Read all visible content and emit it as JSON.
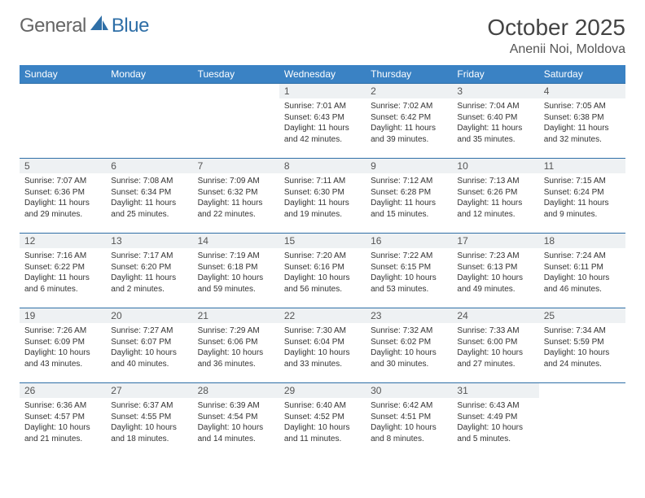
{
  "brand": {
    "part1": "General",
    "part2": "Blue"
  },
  "title": "October 2025",
  "location": "Anenii Noi, Moldova",
  "style": {
    "header_bg": "#3a82c4",
    "header_text": "#ffffff",
    "daynum_bg": "#eef1f3",
    "border_color": "#2f6fa7",
    "body_text": "#333333",
    "title_fontsize": 28,
    "location_fontsize": 16,
    "dayhead_fontsize": 12,
    "body_fontsize": 10
  },
  "day_headers": [
    "Sunday",
    "Monday",
    "Tuesday",
    "Wednesday",
    "Thursday",
    "Friday",
    "Saturday"
  ],
  "weeks": [
    [
      null,
      null,
      null,
      {
        "n": "1",
        "sunrise": "7:01 AM",
        "sunset": "6:43 PM",
        "daylight": "11 hours and 42 minutes."
      },
      {
        "n": "2",
        "sunrise": "7:02 AM",
        "sunset": "6:42 PM",
        "daylight": "11 hours and 39 minutes."
      },
      {
        "n": "3",
        "sunrise": "7:04 AM",
        "sunset": "6:40 PM",
        "daylight": "11 hours and 35 minutes."
      },
      {
        "n": "4",
        "sunrise": "7:05 AM",
        "sunset": "6:38 PM",
        "daylight": "11 hours and 32 minutes."
      }
    ],
    [
      {
        "n": "5",
        "sunrise": "7:07 AM",
        "sunset": "6:36 PM",
        "daylight": "11 hours and 29 minutes."
      },
      {
        "n": "6",
        "sunrise": "7:08 AM",
        "sunset": "6:34 PM",
        "daylight": "11 hours and 25 minutes."
      },
      {
        "n": "7",
        "sunrise": "7:09 AM",
        "sunset": "6:32 PM",
        "daylight": "11 hours and 22 minutes."
      },
      {
        "n": "8",
        "sunrise": "7:11 AM",
        "sunset": "6:30 PM",
        "daylight": "11 hours and 19 minutes."
      },
      {
        "n": "9",
        "sunrise": "7:12 AM",
        "sunset": "6:28 PM",
        "daylight": "11 hours and 15 minutes."
      },
      {
        "n": "10",
        "sunrise": "7:13 AM",
        "sunset": "6:26 PM",
        "daylight": "11 hours and 12 minutes."
      },
      {
        "n": "11",
        "sunrise": "7:15 AM",
        "sunset": "6:24 PM",
        "daylight": "11 hours and 9 minutes."
      }
    ],
    [
      {
        "n": "12",
        "sunrise": "7:16 AM",
        "sunset": "6:22 PM",
        "daylight": "11 hours and 6 minutes."
      },
      {
        "n": "13",
        "sunrise": "7:17 AM",
        "sunset": "6:20 PM",
        "daylight": "11 hours and 2 minutes."
      },
      {
        "n": "14",
        "sunrise": "7:19 AM",
        "sunset": "6:18 PM",
        "daylight": "10 hours and 59 minutes."
      },
      {
        "n": "15",
        "sunrise": "7:20 AM",
        "sunset": "6:16 PM",
        "daylight": "10 hours and 56 minutes."
      },
      {
        "n": "16",
        "sunrise": "7:22 AM",
        "sunset": "6:15 PM",
        "daylight": "10 hours and 53 minutes."
      },
      {
        "n": "17",
        "sunrise": "7:23 AM",
        "sunset": "6:13 PM",
        "daylight": "10 hours and 49 minutes."
      },
      {
        "n": "18",
        "sunrise": "7:24 AM",
        "sunset": "6:11 PM",
        "daylight": "10 hours and 46 minutes."
      }
    ],
    [
      {
        "n": "19",
        "sunrise": "7:26 AM",
        "sunset": "6:09 PM",
        "daylight": "10 hours and 43 minutes."
      },
      {
        "n": "20",
        "sunrise": "7:27 AM",
        "sunset": "6:07 PM",
        "daylight": "10 hours and 40 minutes."
      },
      {
        "n": "21",
        "sunrise": "7:29 AM",
        "sunset": "6:06 PM",
        "daylight": "10 hours and 36 minutes."
      },
      {
        "n": "22",
        "sunrise": "7:30 AM",
        "sunset": "6:04 PM",
        "daylight": "10 hours and 33 minutes."
      },
      {
        "n": "23",
        "sunrise": "7:32 AM",
        "sunset": "6:02 PM",
        "daylight": "10 hours and 30 minutes."
      },
      {
        "n": "24",
        "sunrise": "7:33 AM",
        "sunset": "6:00 PM",
        "daylight": "10 hours and 27 minutes."
      },
      {
        "n": "25",
        "sunrise": "7:34 AM",
        "sunset": "5:59 PM",
        "daylight": "10 hours and 24 minutes."
      }
    ],
    [
      {
        "n": "26",
        "sunrise": "6:36 AM",
        "sunset": "4:57 PM",
        "daylight": "10 hours and 21 minutes."
      },
      {
        "n": "27",
        "sunrise": "6:37 AM",
        "sunset": "4:55 PM",
        "daylight": "10 hours and 18 minutes."
      },
      {
        "n": "28",
        "sunrise": "6:39 AM",
        "sunset": "4:54 PM",
        "daylight": "10 hours and 14 minutes."
      },
      {
        "n": "29",
        "sunrise": "6:40 AM",
        "sunset": "4:52 PM",
        "daylight": "10 hours and 11 minutes."
      },
      {
        "n": "30",
        "sunrise": "6:42 AM",
        "sunset": "4:51 PM",
        "daylight": "10 hours and 8 minutes."
      },
      {
        "n": "31",
        "sunrise": "6:43 AM",
        "sunset": "4:49 PM",
        "daylight": "10 hours and 5 minutes."
      },
      null
    ]
  ],
  "labels": {
    "sunrise": "Sunrise:",
    "sunset": "Sunset:",
    "daylight": "Daylight:"
  }
}
